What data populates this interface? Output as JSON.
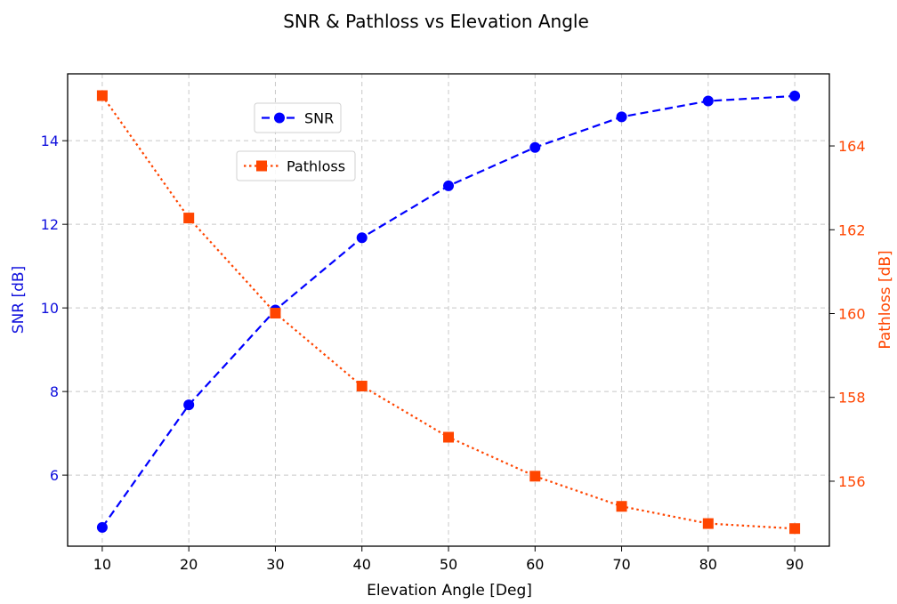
{
  "chart_data": {
    "type": "line",
    "title": "SNR & Pathloss vs Elevation Angle",
    "xlabel": "Elevation Angle [Deg]",
    "x": [
      10,
      20,
      30,
      40,
      50,
      60,
      70,
      80,
      90
    ],
    "xlim": [
      6,
      94
    ],
    "xticks": [
      10,
      20,
      30,
      40,
      50,
      60,
      70,
      80,
      90
    ],
    "grid": true,
    "y_left": {
      "label": "SNR [dB]",
      "color": "#1111dd",
      "lim": [
        4.3,
        15.6
      ],
      "ticks": [
        6,
        8,
        10,
        12,
        14
      ]
    },
    "y_right": {
      "label": "Pathloss [dB]",
      "color": "#ff4500",
      "lim": [
        154.45,
        165.72
      ],
      "ticks": [
        156,
        158,
        160,
        162,
        164
      ]
    },
    "series": [
      {
        "name": "SNR",
        "axis": "left",
        "color": "#0000ff",
        "line_style": "dashed",
        "marker": "circle",
        "values": [
          4.75,
          7.68,
          9.95,
          11.68,
          12.92,
          13.84,
          14.57,
          14.95,
          15.07
        ]
      },
      {
        "name": "Pathloss",
        "axis": "right",
        "color": "#ff4500",
        "line_style": "dotted",
        "marker": "square",
        "values": [
          165.2,
          162.28,
          160.01,
          158.27,
          157.05,
          156.12,
          155.4,
          154.99,
          154.87
        ]
      }
    ],
    "legends": [
      {
        "placement": "upper-center",
        "entries": [
          "SNR"
        ]
      },
      {
        "placement": "upper-center-below",
        "entries": [
          "Pathloss"
        ]
      }
    ]
  }
}
